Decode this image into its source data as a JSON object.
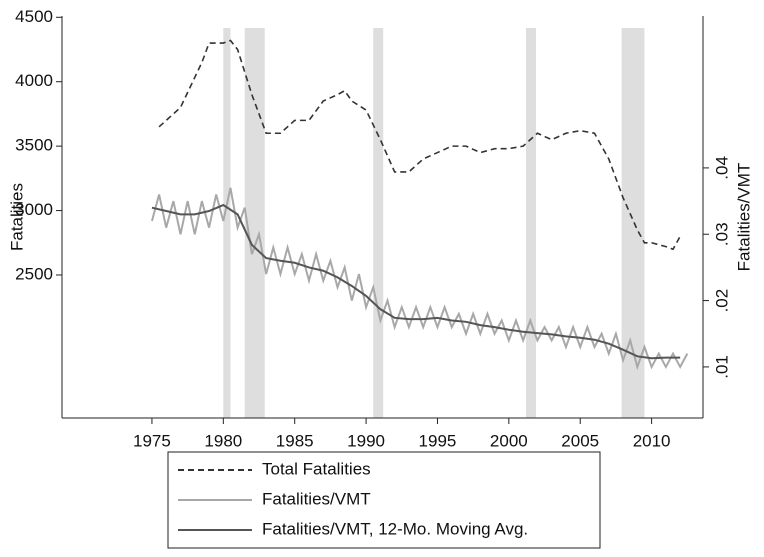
{
  "chart_data": {
    "type": "line",
    "ylabel": "Fatalities",
    "y2label": "Fatalities/VMT",
    "xlim": [
      1968.7,
      2013.6
    ],
    "xticks": [
      1975,
      1980,
      1985,
      1990,
      1995,
      2000,
      2005,
      2010
    ],
    "ylim": [
      1390,
      4510
    ],
    "yticks": [
      2500,
      3000,
      3500,
      4000,
      4500
    ],
    "y2lim": [
      0.0023,
      0.0629
    ],
    "y2ticks": [
      {
        "value": 0.01,
        "label": ".01"
      },
      {
        "value": 0.02,
        "label": ".02"
      },
      {
        "value": 0.03,
        "label": ".03"
      },
      {
        "value": 0.04,
        "label": ".04"
      }
    ],
    "shaded_periods": [
      [
        1980.0,
        1980.5
      ],
      [
        1981.5,
        1982.9
      ],
      [
        1990.5,
        1991.2
      ],
      [
        2001.2,
        2001.9
      ],
      [
        2007.9,
        2009.5
      ]
    ],
    "shade_color": "#dedede",
    "series": [
      {
        "name": "Total Fatalities",
        "color": "#333333",
        "line_style": "dashed",
        "x": [
          1975.5,
          1977,
          1978.5,
          1979,
          1980,
          1980.5,
          1981,
          1982,
          1983,
          1984,
          1985,
          1986,
          1987,
          1988,
          1988.5,
          1989,
          1990,
          1991,
          1992,
          1993,
          1994,
          1995,
          1996,
          1997,
          1998,
          1999,
          2000,
          2001,
          2002,
          2003,
          2004,
          2005,
          2006,
          2007,
          2008,
          2009,
          2009.5,
          2010,
          2011,
          2011.5,
          2012
        ],
        "values": [
          3650,
          3800,
          4150,
          4300,
          4300,
          4320,
          4250,
          3900,
          3600,
          3600,
          3700,
          3700,
          3850,
          3900,
          3930,
          3850,
          3780,
          3550,
          3300,
          3300,
          3400,
          3450,
          3500,
          3500,
          3450,
          3480,
          3480,
          3500,
          3600,
          3550,
          3600,
          3620,
          3600,
          3400,
          3100,
          2850,
          2750,
          2750,
          2720,
          2700,
          2800
        ]
      },
      {
        "name": "Fatalities/VMT",
        "color": "#a8a8a8",
        "line_style": "solid",
        "axis": "y2",
        "x": [
          1975,
          1975.5,
          1976,
          1976.5,
          1977,
          1977.5,
          1978,
          1978.5,
          1979,
          1979.5,
          1980,
          1980.5,
          1981,
          1981.5,
          1982,
          1982.5,
          1983,
          1983.5,
          1984,
          1984.5,
          1985,
          1985.5,
          1986,
          1986.5,
          1987,
          1987.5,
          1988,
          1988.5,
          1989,
          1989.5,
          1990,
          1990.5,
          1991,
          1991.5,
          1992,
          1992.5,
          1993,
          1993.5,
          1994,
          1994.5,
          1995,
          1995.5,
          1996,
          1996.5,
          1997,
          1997.5,
          1998,
          1998.5,
          1999,
          1999.5,
          2000,
          2000.5,
          2001,
          2001.5,
          2002,
          2002.5,
          2003,
          2003.5,
          2004,
          2004.5,
          2005,
          2005.5,
          2006,
          2006.5,
          2007,
          2007.5,
          2008,
          2008.5,
          2009,
          2009.5,
          2010,
          2010.5,
          2011,
          2011.5,
          2012,
          2012.5
        ],
        "values": [
          0.032,
          0.036,
          0.031,
          0.035,
          0.03,
          0.035,
          0.03,
          0.035,
          0.031,
          0.036,
          0.032,
          0.037,
          0.031,
          0.034,
          0.027,
          0.03,
          0.024,
          0.028,
          0.024,
          0.028,
          0.024,
          0.027,
          0.023,
          0.027,
          0.023,
          0.026,
          0.022,
          0.025,
          0.02,
          0.024,
          0.019,
          0.022,
          0.017,
          0.02,
          0.016,
          0.019,
          0.016,
          0.019,
          0.016,
          0.019,
          0.016,
          0.019,
          0.016,
          0.018,
          0.015,
          0.018,
          0.015,
          0.018,
          0.015,
          0.017,
          0.014,
          0.017,
          0.014,
          0.017,
          0.014,
          0.016,
          0.014,
          0.016,
          0.013,
          0.016,
          0.013,
          0.016,
          0.013,
          0.015,
          0.012,
          0.015,
          0.011,
          0.014,
          0.01,
          0.013,
          0.01,
          0.012,
          0.01,
          0.012,
          0.01,
          0.012
        ]
      },
      {
        "name": "Fatalities/VMT, 12-Mo. Moving Avg.",
        "color": "#555555",
        "line_style": "solid",
        "axis": "y2",
        "x": [
          1975,
          1976,
          1977,
          1978,
          1979,
          1980,
          1981,
          1982,
          1983,
          1984,
          1985,
          1986,
          1987,
          1988,
          1989,
          1990,
          1991,
          1992,
          1993,
          1994,
          1995,
          1996,
          1997,
          1998,
          1999,
          2000,
          2001,
          2002,
          2003,
          2004,
          2005,
          2006,
          2007,
          2008,
          2009,
          2010,
          2011,
          2012
        ],
        "values": [
          0.034,
          0.0335,
          0.033,
          0.033,
          0.0335,
          0.0344,
          0.033,
          0.0284,
          0.0264,
          0.026,
          0.0257,
          0.025,
          0.0245,
          0.0235,
          0.0222,
          0.0207,
          0.0187,
          0.0174,
          0.0172,
          0.0172,
          0.0174,
          0.017,
          0.0168,
          0.0163,
          0.016,
          0.0156,
          0.0153,
          0.0151,
          0.0149,
          0.0146,
          0.0144,
          0.0141,
          0.0135,
          0.0126,
          0.0116,
          0.0113,
          0.0114,
          0.0114
        ]
      }
    ]
  }
}
